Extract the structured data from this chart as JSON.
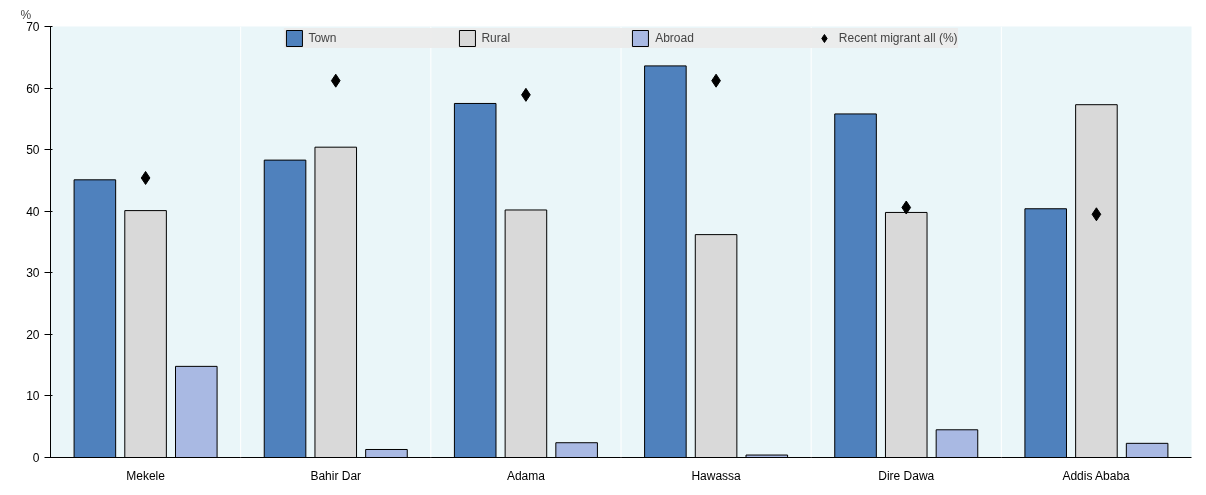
{
  "chart_data": {
    "type": "bar",
    "ylabel": "%",
    "categories": [
      "Mekele",
      "Bahir Dar",
      "Adama",
      "Hawassa",
      "Dire Dawa",
      "Addis Ababa"
    ],
    "series": [
      {
        "name": "Town",
        "color": "#4f81bd",
        "values": [
          45.1,
          48.3,
          57.5,
          63.6,
          55.8,
          40.4
        ]
      },
      {
        "name": "Rural",
        "color": "#d9d9d9",
        "values": [
          40.1,
          50.4,
          40.2,
          36.2,
          39.8,
          57.3
        ]
      },
      {
        "name": "Abroad",
        "color": "#a9b9e3",
        "values": [
          14.8,
          1.3,
          2.4,
          0.4,
          4.5,
          2.3
        ]
      },
      {
        "name": "Recent migrant all (%)",
        "type": "scatter",
        "marker": "diamond",
        "color": "#000000",
        "values": [
          45.4,
          61.2,
          58.9,
          61.2,
          40.6,
          39.5
        ]
      }
    ],
    "ylim": [
      0,
      70
    ],
    "yticks": [
      0,
      10,
      20,
      30,
      40,
      50,
      60,
      70
    ],
    "grid": false,
    "legend": "top"
  }
}
